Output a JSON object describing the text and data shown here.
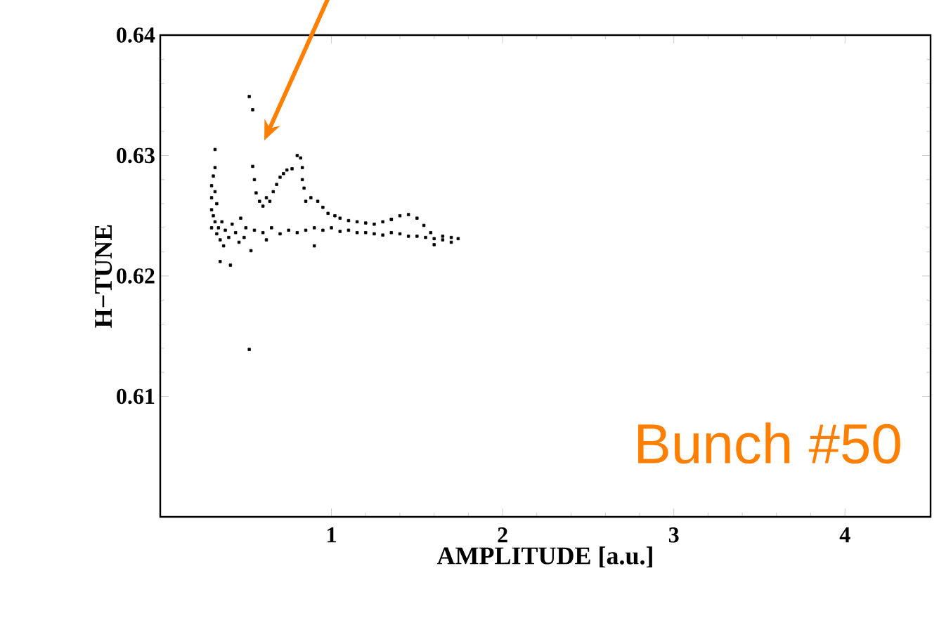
{
  "chart_data": {
    "type": "scatter",
    "xlabel": "AMPLITUDE [a.u.]",
    "ylabel": "H−TUNE",
    "color": "#000000",
    "marker": "square",
    "x": [
      0.3,
      0.3,
      0.3,
      0.3,
      0.31,
      0.31,
      0.32,
      0.32,
      0.32,
      0.32,
      0.33,
      0.33,
      0.34,
      0.35,
      0.36,
      0.37,
      0.38,
      0.35,
      0.4,
      0.41,
      0.42,
      0.44,
      0.46,
      0.47,
      0.49,
      0.5,
      0.53,
      0.52,
      0.52,
      0.54,
      0.54,
      0.55,
      0.56,
      0.58,
      0.6,
      0.62,
      0.64,
      0.66,
      0.68,
      0.7,
      0.72,
      0.74,
      0.77,
      0.8,
      0.82,
      0.83,
      0.83,
      0.84,
      0.85,
      0.88,
      0.92,
      0.95,
      0.98,
      1.02,
      1.05,
      1.1,
      1.15,
      1.2,
      1.25,
      1.3,
      1.35,
      1.4,
      1.45,
      1.5,
      1.54,
      1.58,
      0.55,
      0.6,
      0.65,
      0.7,
      0.75,
      0.8,
      0.85,
      0.9,
      0.95,
      1.0,
      1.05,
      1.1,
      1.15,
      1.2,
      1.25,
      1.3,
      1.35,
      1.4,
      1.45,
      1.5,
      1.55,
      1.6,
      1.65,
      1.7,
      1.74,
      1.6,
      1.65,
      1.7,
      1.35,
      0.9,
      0.62
    ],
    "values": [
      0.624,
      0.6255,
      0.6265,
      0.6275,
      0.6283,
      0.625,
      0.6305,
      0.629,
      0.627,
      0.6245,
      0.626,
      0.6235,
      0.624,
      0.623,
      0.6245,
      0.6225,
      0.6238,
      0.6212,
      0.6232,
      0.6209,
      0.6243,
      0.6236,
      0.6228,
      0.6248,
      0.6232,
      0.624,
      0.6221,
      0.6139,
      0.6349,
      0.6338,
      0.6291,
      0.628,
      0.6269,
      0.6262,
      0.6258,
      0.6265,
      0.6262,
      0.627,
      0.6276,
      0.6282,
      0.6285,
      0.6288,
      0.6289,
      0.63,
      0.6298,
      0.629,
      0.628,
      0.6273,
      0.6262,
      0.6265,
      0.6262,
      0.6257,
      0.6252,
      0.625,
      0.6248,
      0.6246,
      0.6245,
      0.6244,
      0.6243,
      0.6245,
      0.6247,
      0.625,
      0.6251,
      0.6248,
      0.6242,
      0.6236,
      0.6238,
      0.6236,
      0.624,
      0.6235,
      0.6238,
      0.6236,
      0.6238,
      0.624,
      0.6238,
      0.624,
      0.6237,
      0.6238,
      0.6236,
      0.6236,
      0.6235,
      0.6234,
      0.6236,
      0.6235,
      0.6233,
      0.6233,
      0.6232,
      0.6231,
      0.623,
      0.6232,
      0.6231,
      0.6226,
      0.6233,
      0.6228,
      0.6247,
      0.6225,
      0.623
    ],
    "xlim": [
      0,
      4.5
    ],
    "ylim": [
      0.6,
      0.64
    ],
    "xticks": [
      1,
      2,
      3,
      4
    ],
    "yticks": [
      0.61,
      0.62,
      0.63,
      0.64
    ],
    "annotations": [
      "Bunch #50"
    ]
  }
}
